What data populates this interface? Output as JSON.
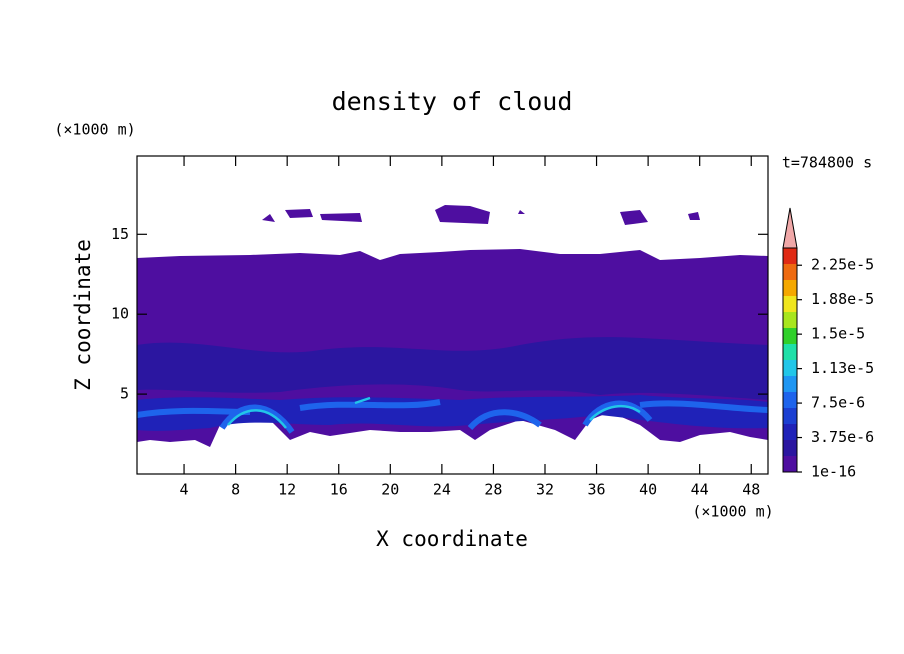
{
  "chart_data": {
    "type": "contour",
    "title": "density of cloud",
    "x_label": "X coordinate",
    "y_label": "Z coordinate",
    "x_unit": "(×1000 m)",
    "y_unit": "(×1000 m)",
    "time_label": "t=784800 s",
    "xlim": [
      0.35,
      49.3
    ],
    "ylim": [
      0,
      19.9
    ],
    "xticks": [
      4,
      8,
      12,
      16,
      20,
      24,
      28,
      32,
      36,
      40,
      44,
      48
    ],
    "yticks": [
      5,
      10,
      15
    ],
    "colorbar": {
      "clim": [
        1e-16,
        2.4375e-05
      ],
      "colors": [
        "#4e0ea0",
        "#2b16a0",
        "#1f22b8",
        "#1b3fd2",
        "#1e64ec",
        "#1f96f2",
        "#22c6e8",
        "#1fe0a8",
        "#30d02a",
        "#a8e61e",
        "#f0e61e",
        "#f5a800",
        "#ee6a10",
        "#e02a14"
      ],
      "extend_color": "#f0a8a8",
      "ticks": [
        {
          "value": 1e-16,
          "label": "1e-16"
        },
        {
          "value": 3.75e-06,
          "label": "3.75e-6"
        },
        {
          "value": 7.5e-06,
          "label": "7.5e-6"
        },
        {
          "value": 1.125e-05,
          "label": "1.13e-5"
        },
        {
          "value": 1.5e-05,
          "label": "1.5e-5"
        },
        {
          "value": 1.875e-05,
          "label": "1.88e-5"
        },
        {
          "value": 2.25e-05,
          "label": "2.25e-5"
        }
      ]
    }
  }
}
